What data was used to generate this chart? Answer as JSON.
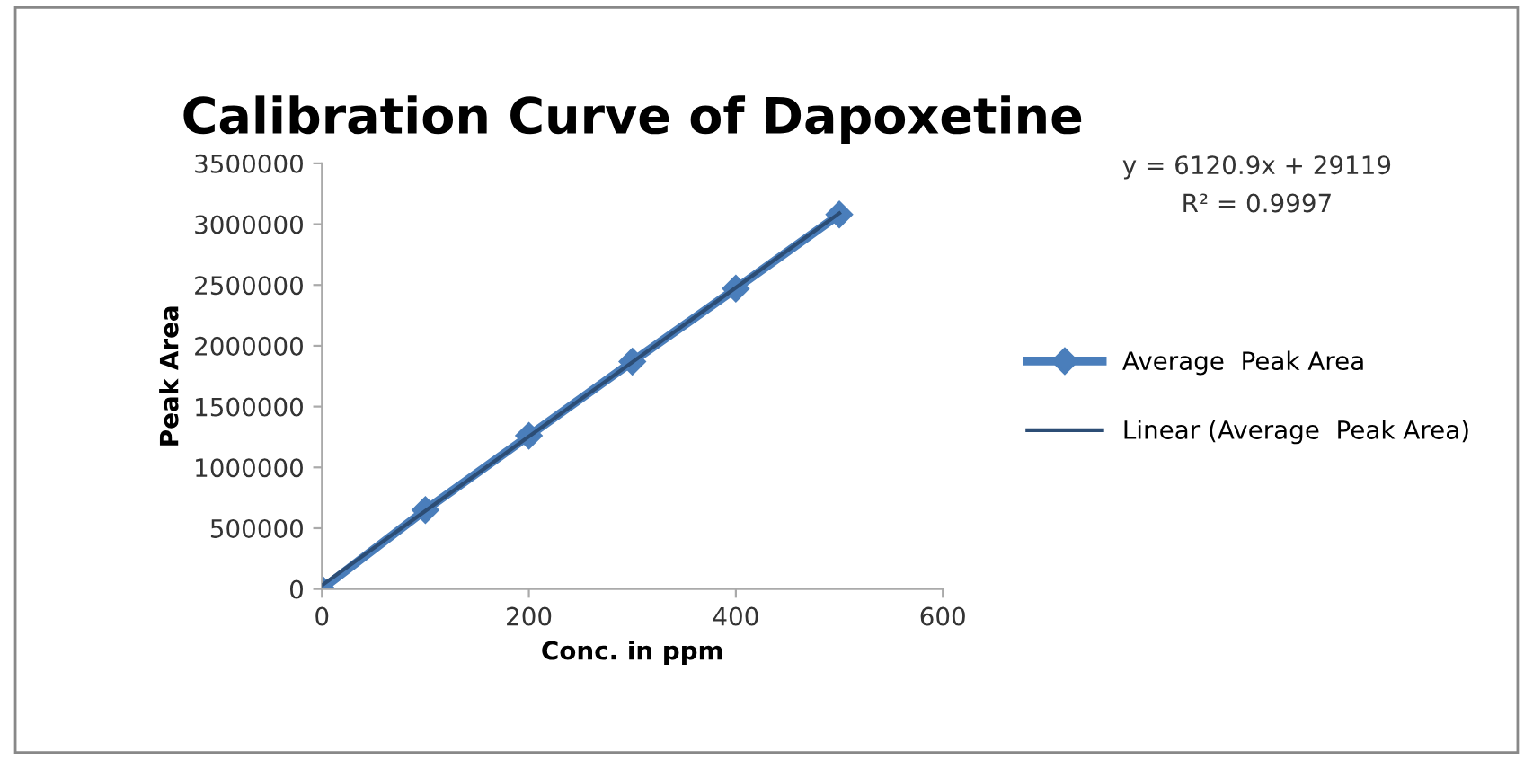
{
  "chart_data": {
    "type": "line",
    "title": "Calibration Curve of Dapoxetine",
    "xlabel": "Conc. in ppm",
    "ylabel": "Peak Area",
    "x": [
      0,
      100,
      200,
      300,
      400,
      500
    ],
    "series": [
      {
        "name": "Average  Peak Area",
        "color": "#4a7ebb",
        "values": [
          0,
          650000,
          1260000,
          1870000,
          2470000,
          3080000
        ],
        "marker": "diamond"
      },
      {
        "name": "Linear (Average  Peak Area)",
        "type": "line",
        "color": "#2c4d75",
        "x": [
          0,
          500
        ],
        "values": [
          30000,
          3090000
        ],
        "marker": "none"
      }
    ],
    "xlim": [
      0,
      600
    ],
    "xticks": [
      0,
      200,
      400,
      600
    ],
    "ylim": [
      0,
      3500000
    ],
    "yticks": [
      0,
      500000,
      1000000,
      1500000,
      2000000,
      2500000,
      3000000,
      3500000
    ],
    "grid": false,
    "legend": "right",
    "annotations": [
      "y = 6120.9x + 29119",
      "R² = 0.9997"
    ]
  }
}
